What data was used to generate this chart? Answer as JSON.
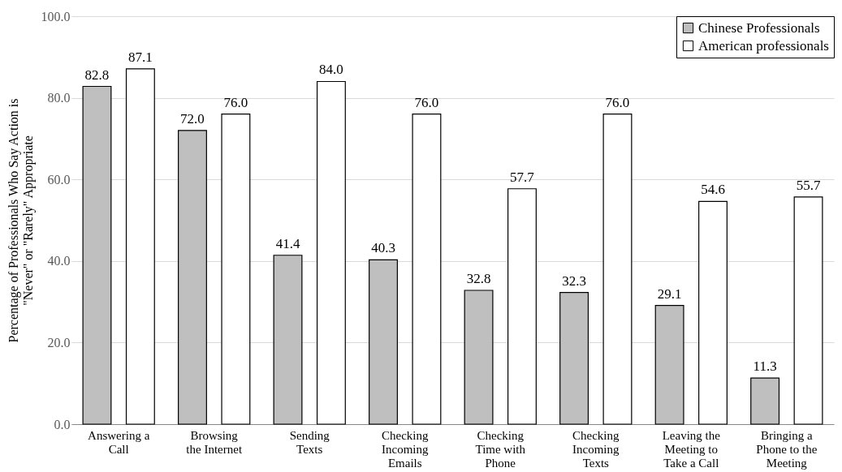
{
  "chart_data": {
    "type": "bar",
    "ylabel": "Percentage of Professionals Who Say Action is\n\"Never\" or \"Rarely\" Appropriate",
    "categories": [
      "Answering a\nCall",
      "Browsing\nthe Internet",
      "Sending\nTexts",
      "Checking\nIncoming\nEmails",
      "Checking\nTime with\nPhone",
      "Checking\nIncoming\nTexts",
      "Leaving the\nMeeting to\nTake a Call",
      "Bringing a\nPhone to the\nMeeting"
    ],
    "series": [
      {
        "name": "Chinese Professionals",
        "color": "#bfbfbf",
        "values": [
          82.8,
          72.0,
          41.4,
          40.3,
          32.8,
          32.3,
          29.1,
          11.3
        ],
        "value_labels": [
          "82.8",
          "72.0",
          "41.4",
          "40.3",
          "32.8",
          "32.3",
          "29.1",
          "11.3"
        ]
      },
      {
        "name": "American professionals",
        "color": "#ffffff",
        "values": [
          87.1,
          76.0,
          84.0,
          76.0,
          57.7,
          76.0,
          54.6,
          55.7
        ],
        "value_labels": [
          "87.1",
          "76.0",
          "84.0",
          "76.0",
          "57.7",
          "76.0",
          "54.6",
          "55.7"
        ]
      }
    ],
    "ylim": [
      0,
      100
    ],
    "yticks": [
      {
        "value": 0,
        "label": "0.0"
      },
      {
        "value": 20,
        "label": "20.0"
      },
      {
        "value": 40,
        "label": "40.0"
      },
      {
        "value": 60,
        "label": "60.0"
      },
      {
        "value": 80,
        "label": "80.0"
      },
      {
        "value": 100,
        "label": "100.0"
      }
    ],
    "grid": "y",
    "legend": "top right"
  }
}
